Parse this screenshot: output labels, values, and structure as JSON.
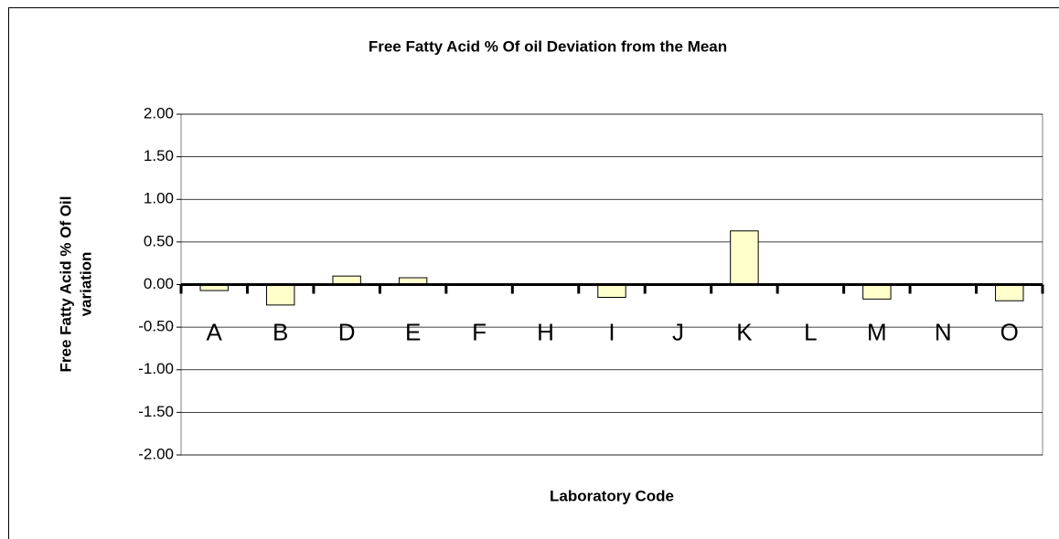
{
  "chart_data": {
    "type": "bar",
    "title": "Free Fatty Acid % Of oil Deviation from the Mean",
    "x_label": "Laboratory Code",
    "y_label": [
      "Free Fatty Acid % Of Oil",
      "variation"
    ],
    "categories": [
      "A",
      "B",
      "D",
      "E",
      "F",
      "H",
      "I",
      "J",
      "K",
      "L",
      "M",
      "N",
      "O"
    ],
    "values": [
      -0.07,
      -0.24,
      0.1,
      0.08,
      0,
      0,
      -0.15,
      0,
      0.63,
      0,
      -0.17,
      0,
      -0.19
    ],
    "color": "#ffffcc",
    "ylim": [
      -2,
      2
    ],
    "yticks": [
      {
        "value": -2,
        "label": "-2.00"
      },
      {
        "value": -1.5,
        "label": "-1.50"
      },
      {
        "value": -1,
        "label": "-1.00"
      },
      {
        "value": -0.5,
        "label": "-0.50"
      },
      {
        "value": 0,
        "label": "0.00"
      },
      {
        "value": 0.5,
        "label": "0.50"
      },
      {
        "value": 1,
        "label": "1.00"
      },
      {
        "value": 1.5,
        "label": "1.50"
      },
      {
        "value": 2,
        "label": "2.00"
      }
    ],
    "grid": true
  }
}
